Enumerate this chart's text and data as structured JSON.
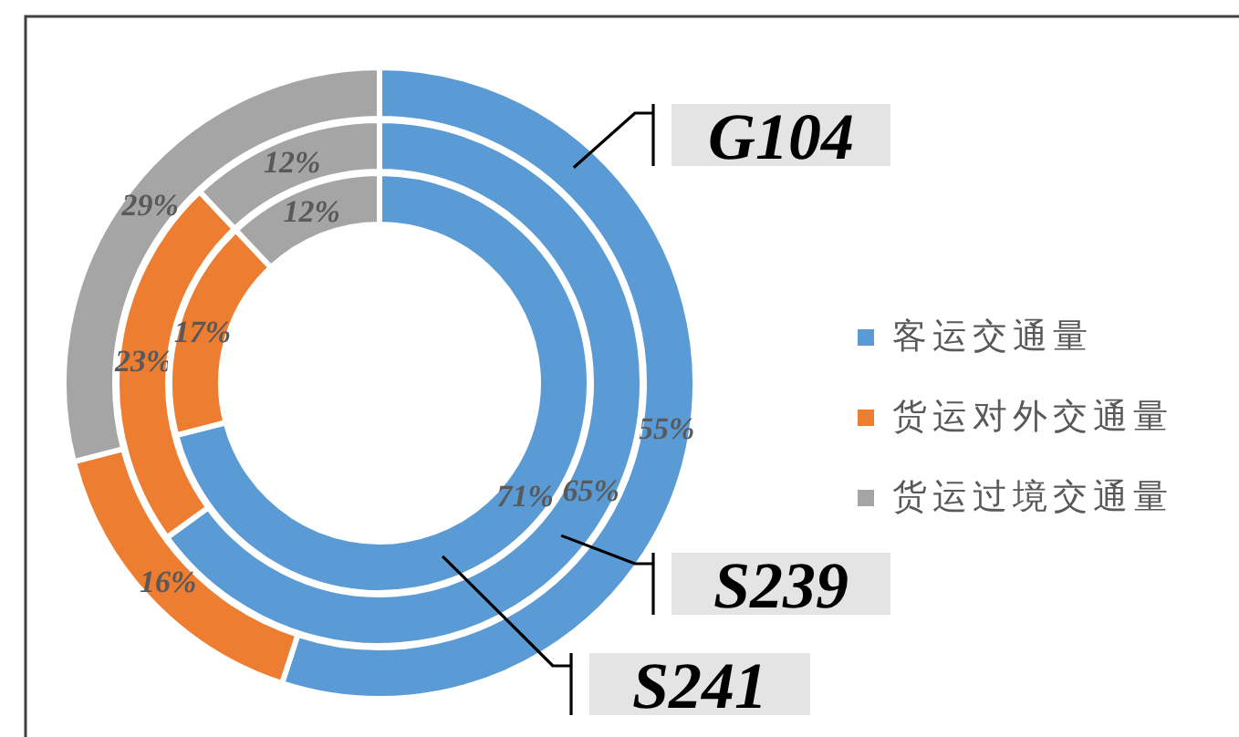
{
  "chart_data": {
    "type": "donut",
    "categories": [
      "客运交通量",
      "货运对外交通量",
      "货运过境交通量"
    ],
    "colors": [
      "#5b9bd5",
      "#ed7d31",
      "#a5a5a5"
    ],
    "series": [
      {
        "name": "G104",
        "values": [
          55,
          16,
          29
        ],
        "value_labels": [
          "55%",
          "16%",
          "29%"
        ]
      },
      {
        "name": "S239",
        "values": [
          65,
          23,
          12
        ],
        "value_labels": [
          "65%",
          "23%",
          "12%"
        ]
      },
      {
        "name": "S241",
        "values": [
          71,
          17,
          12
        ],
        "value_labels": [
          "71%",
          "17%",
          "12%"
        ]
      }
    ],
    "legend": "right"
  }
}
